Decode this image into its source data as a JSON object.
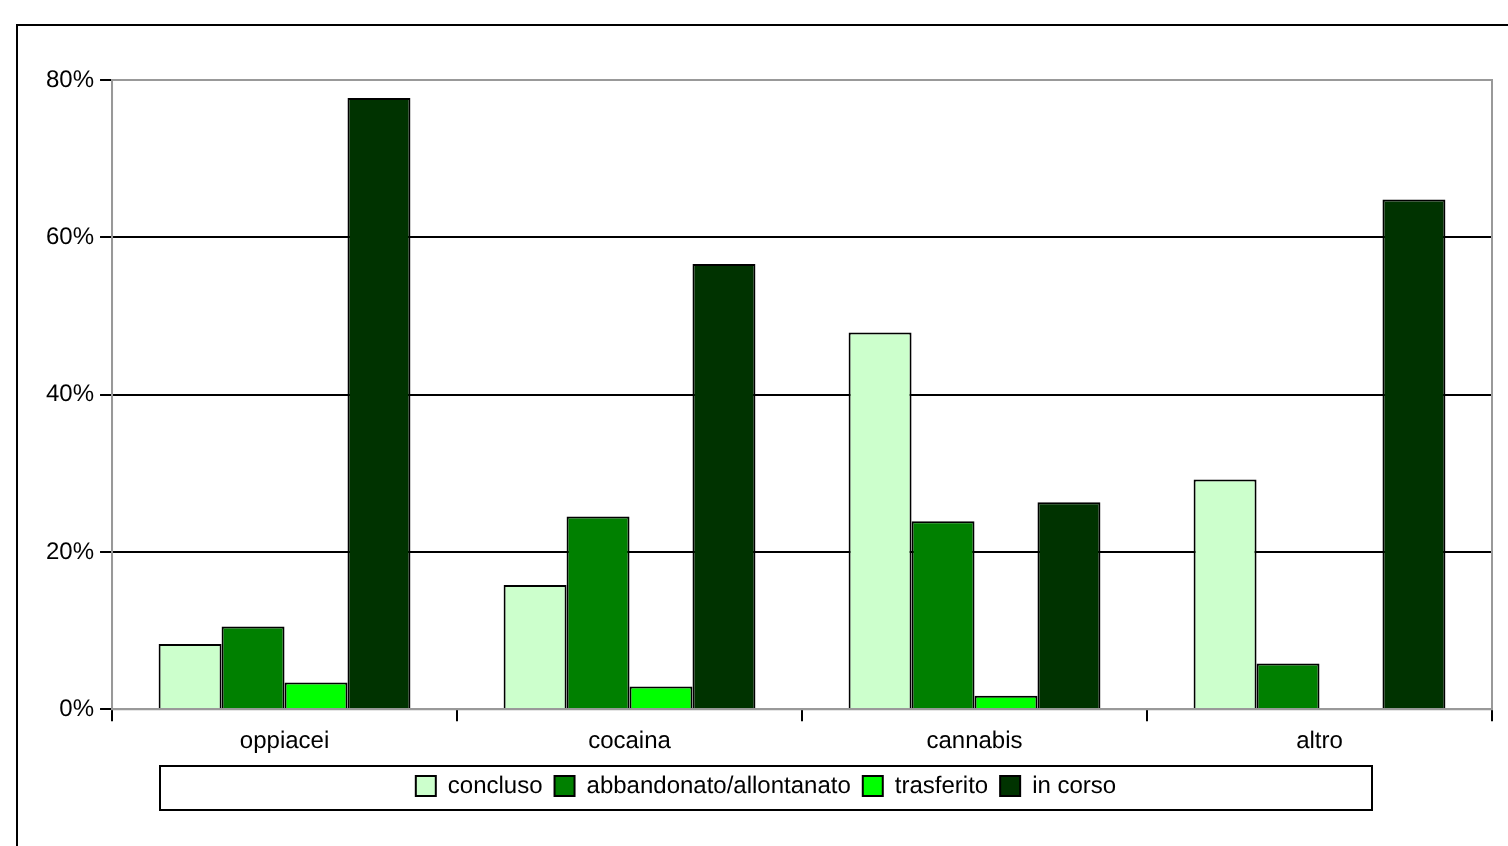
{
  "chart_data": {
    "type": "bar",
    "categories": [
      "oppiacei",
      "cocaina",
      "cannabis",
      "altro"
    ],
    "series": [
      {
        "name": "concluso",
        "color": "#ccffcc",
        "values": [
          8.3,
          15.8,
          47.9,
          29.2
        ]
      },
      {
        "name": "abbandonato/allontanato",
        "color": "#008000",
        "values": [
          10.5,
          24.5,
          23.9,
          5.8
        ]
      },
      {
        "name": "trasferito",
        "color": "#00ff00",
        "values": [
          3.4,
          2.9,
          1.7,
          null
        ]
      },
      {
        "name": "in corso",
        "color": "#003300",
        "values": [
          77.7,
          56.6,
          26.3,
          64.8
        ]
      }
    ],
    "ylim": [
      0,
      80
    ],
    "yticks": [
      {
        "value": 0,
        "label": "0%"
      },
      {
        "value": 20,
        "label": "20%"
      },
      {
        "value": 40,
        "label": "40%"
      },
      {
        "value": 60,
        "label": "60%"
      },
      {
        "value": 80,
        "label": "80%"
      }
    ],
    "grid": "y",
    "legend": "bottom"
  }
}
